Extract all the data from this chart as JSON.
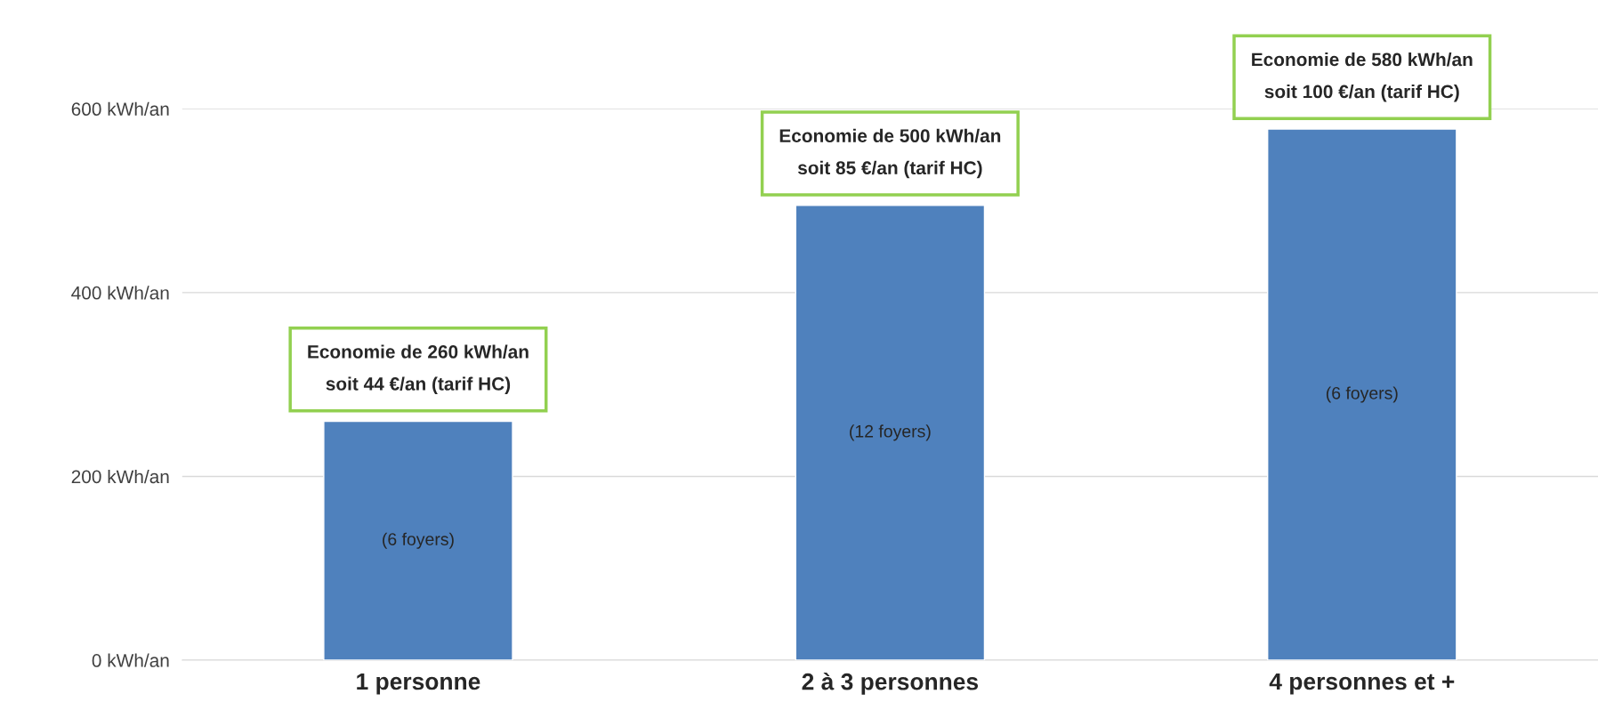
{
  "chart_data": {
    "type": "bar",
    "categories": [
      "1 personne",
      "2 à 3 personnes",
      "4 personnes et +"
    ],
    "values": [
      260,
      495,
      578
    ],
    "color": "#4f81bd",
    "ylim": [
      0,
      600
    ],
    "yticks": [
      {
        "value": 0,
        "label": "0 kWh/an"
      },
      {
        "value": 200,
        "label": "200 kWh/an"
      },
      {
        "value": 400,
        "label": "400 kWh/an"
      },
      {
        "value": 600,
        "label": "600 kWh/an"
      }
    ],
    "grid": "y",
    "legend": false,
    "annotations": [
      {
        "text": "Economie de 260 kWh/an\nsoit 44 €/an (tarif HC)",
        "x": "1 personne",
        "y": 260
      },
      {
        "text": "Economie de 500 kWh/an\nsoit 85 €/an (tarif HC)",
        "x": "2 à 3 personnes",
        "y": 495
      },
      {
        "text": "Economie de 580 kWh/an\nsoit 100 €/an (tarif HC)",
        "x": "4 personnes et +",
        "y": 578
      },
      "(6 foyers)",
      "(12 foyers)",
      "(6 foyers)"
    ]
  }
}
